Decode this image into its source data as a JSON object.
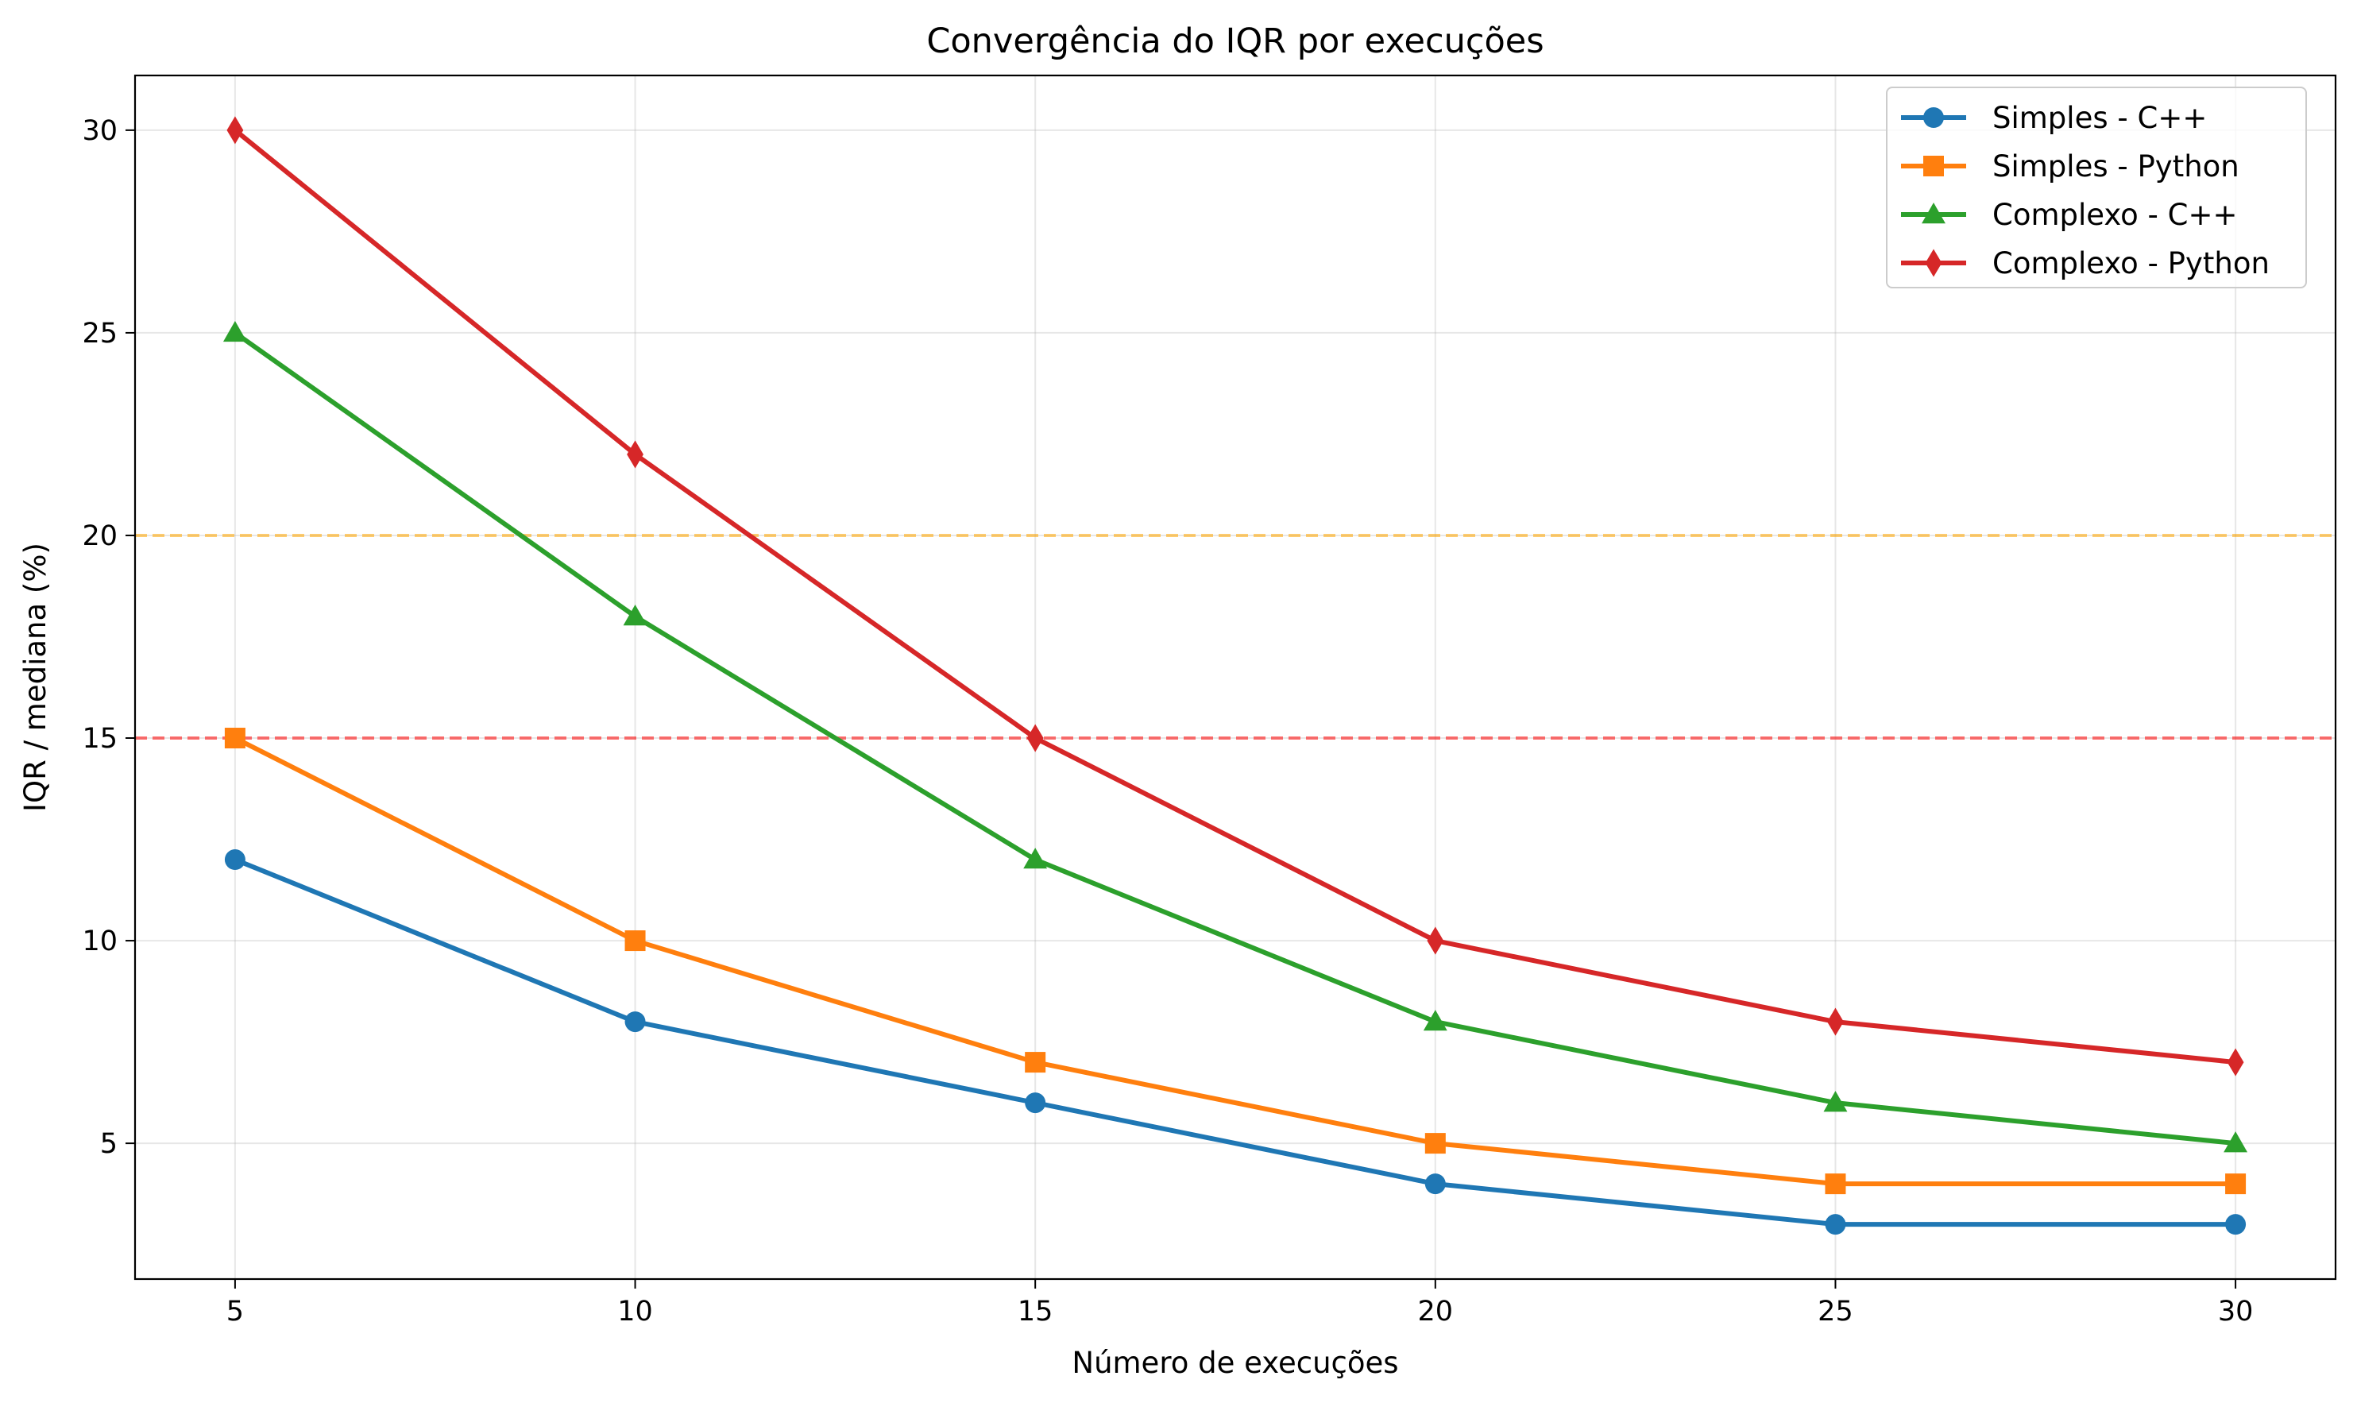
{
  "chart_data": {
    "type": "line",
    "title": "Convergência do IQR por execuções",
    "xlabel": "Número de execuções",
    "ylabel": "IQR / mediana (%)",
    "x": [
      5,
      10,
      15,
      20,
      25,
      30
    ],
    "xticks": [
      5,
      10,
      15,
      20,
      25,
      30
    ],
    "yticks": [
      5,
      10,
      15,
      20,
      25,
      30
    ],
    "xlim": [
      3.75,
      31.25
    ],
    "ylim": [
      1.65,
      31.35
    ],
    "grid": true,
    "legend_position": "top-right",
    "series": [
      {
        "name": "Simples - C++",
        "values": [
          12,
          8,
          6,
          4,
          3,
          3
        ],
        "color": "#1f77b4",
        "marker": "circle"
      },
      {
        "name": "Simples - Python",
        "values": [
          15,
          10,
          7,
          5,
          4,
          4
        ],
        "color": "#ff7f0e",
        "marker": "square"
      },
      {
        "name": "Complexo - C++",
        "values": [
          25,
          18,
          12,
          8,
          6,
          5
        ],
        "color": "#2ca02c",
        "marker": "triangle"
      },
      {
        "name": "Complexo - Python",
        "values": [
          30,
          22,
          15,
          10,
          8,
          7
        ],
        "color": "#d62728",
        "marker": "diamond"
      }
    ],
    "reference_lines": [
      {
        "y": 20,
        "color": "#ffa500",
        "style": "dashed"
      },
      {
        "y": 15,
        "color": "#ff0000",
        "style": "dashed"
      }
    ]
  }
}
